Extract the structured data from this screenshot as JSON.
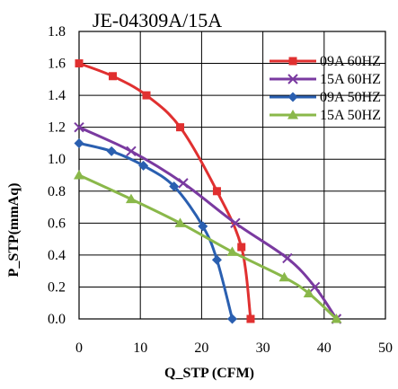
{
  "chart_data": {
    "type": "line",
    "title": "JE-04309A/15A",
    "xlabel": "Q_STP (CFM)",
    "ylabel": "P_STP(mmAq)",
    "xlim": [
      0,
      50
    ],
    "ylim": [
      0,
      1.8
    ],
    "x_ticks": [
      "0",
      "10",
      "20",
      "30",
      "40",
      "50"
    ],
    "y_ticks": [
      "0.0",
      "0.2",
      "0.4",
      "0.6",
      "0.8",
      "1.0",
      "1.2",
      "1.4",
      "1.6",
      "1.8"
    ],
    "grid": true,
    "legend_position": "top-right",
    "series": [
      {
        "name": "09A 60HZ",
        "color": "#e03030",
        "marker": "square",
        "x": [
          0,
          5.5,
          11,
          16.5,
          22.5,
          26.5,
          28
        ],
        "y": [
          1.6,
          1.52,
          1.4,
          1.2,
          0.8,
          0.45,
          0.0
        ]
      },
      {
        "name": "15A 60HZ",
        "color": "#7a3aa0",
        "marker": "x",
        "x": [
          0,
          8.5,
          17,
          25.5,
          34,
          38.5,
          42
        ],
        "y": [
          1.2,
          1.05,
          0.85,
          0.6,
          0.38,
          0.2,
          0.0
        ]
      },
      {
        "name": "09A 50HZ",
        "color": "#2a5fb0",
        "marker": "diamond",
        "x": [
          0,
          5.3,
          10.5,
          15.5,
          20.2,
          22.5,
          25
        ],
        "y": [
          1.1,
          1.05,
          0.96,
          0.83,
          0.58,
          0.37,
          0.0
        ]
      },
      {
        "name": "15A 50HZ",
        "color": "#8ab84a",
        "marker": "triangle",
        "x": [
          0,
          8.5,
          16.5,
          25,
          33.5,
          37.5,
          42
        ],
        "y": [
          0.9,
          0.75,
          0.6,
          0.42,
          0.26,
          0.16,
          0.0
        ]
      }
    ]
  }
}
